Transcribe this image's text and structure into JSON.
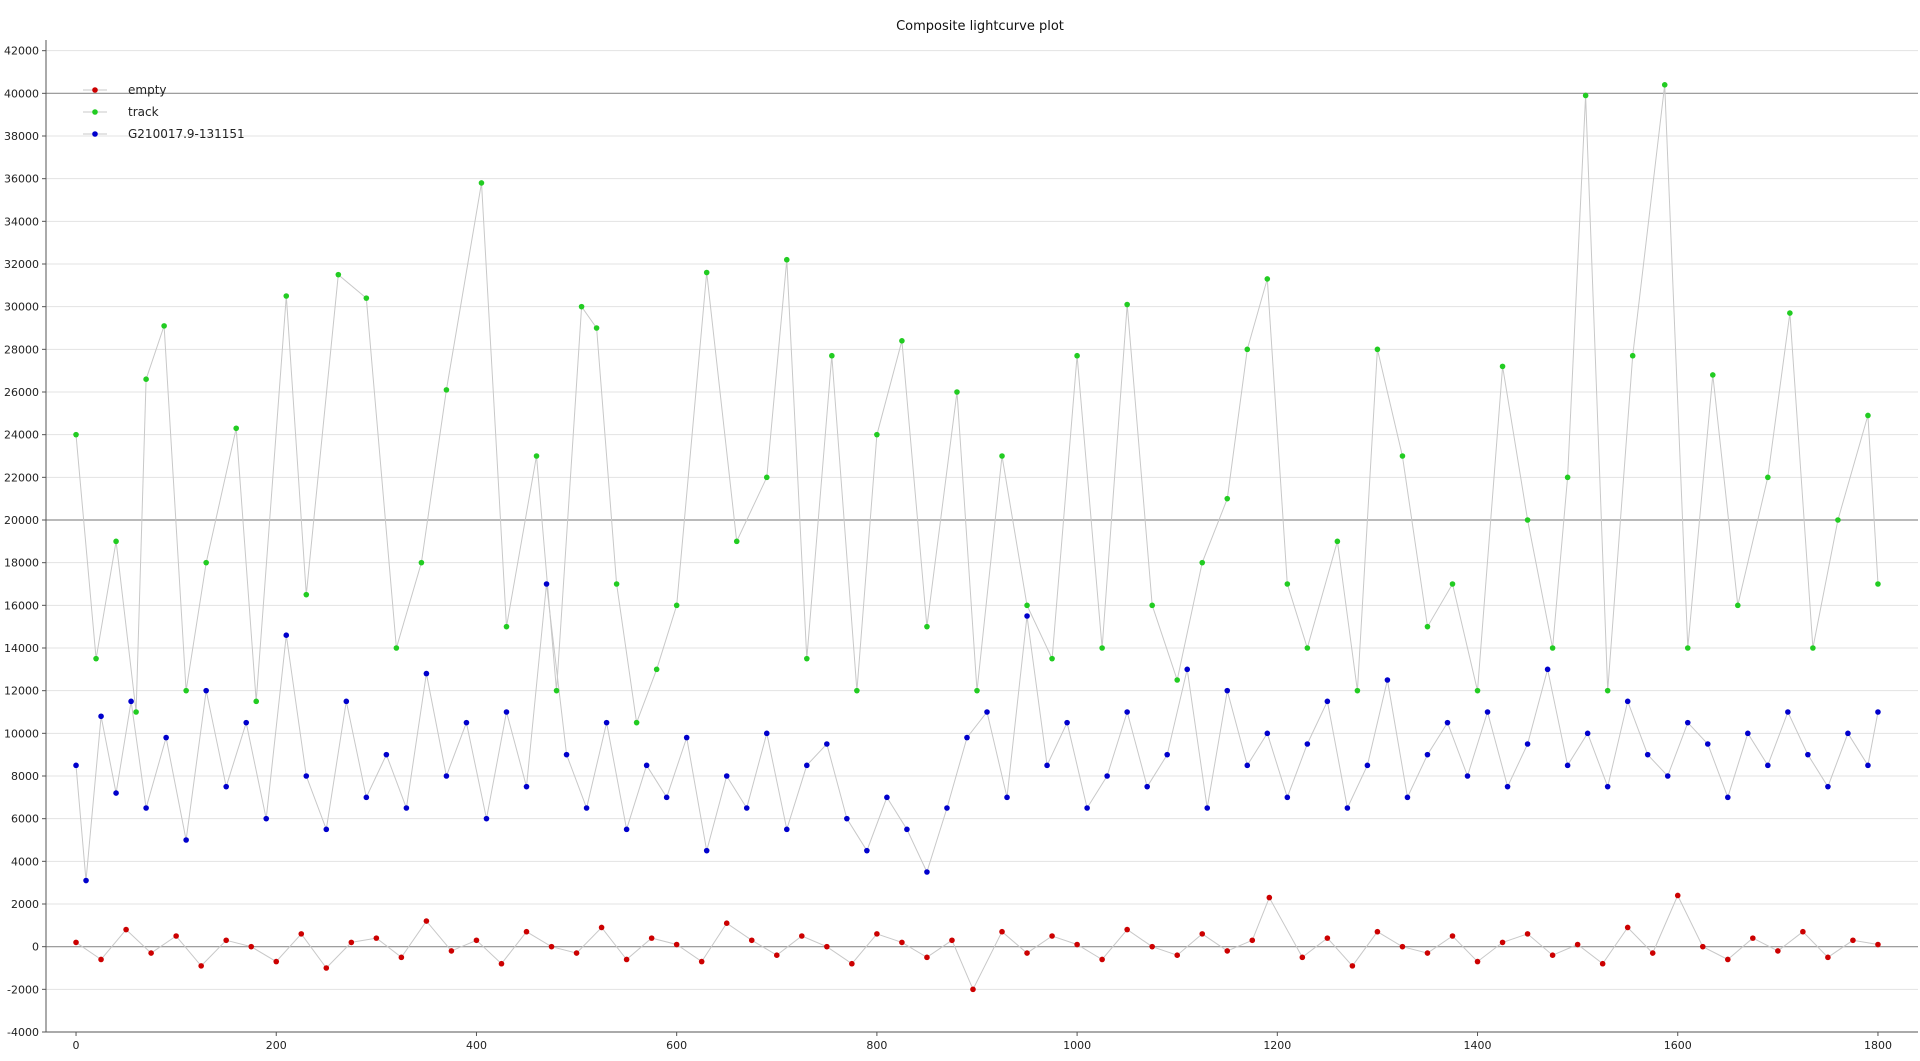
{
  "chart_data": {
    "type": "scatter",
    "title": "Composite lightcurve plot",
    "xlabel": "",
    "ylabel": "",
    "xlim": [
      -30,
      1840
    ],
    "ylim": [
      -4000,
      42500
    ],
    "x_ticks": [
      0,
      200,
      400,
      600,
      800,
      1000,
      1200,
      1400,
      1600,
      1800
    ],
    "y_ticks": [
      -4000,
      -2000,
      0,
      2000,
      4000,
      6000,
      8000,
      10000,
      12000,
      14000,
      16000,
      18000,
      20000,
      22000,
      24000,
      26000,
      28000,
      30000,
      32000,
      34000,
      36000,
      38000,
      40000,
      42000
    ],
    "major_gridlines": [
      0,
      20000,
      40000
    ],
    "grid": true,
    "legend_position": "top-left",
    "connect_lines": true,
    "line_color": "#c8c8c8",
    "series": [
      {
        "name": "empty",
        "color": "#cc0000",
        "x": [
          0,
          25,
          50,
          75,
          100,
          125,
          150,
          175,
          200,
          225,
          250,
          275,
          300,
          325,
          350,
          375,
          400,
          425,
          450,
          475,
          500,
          525,
          550,
          575,
          600,
          625,
          650,
          675,
          700,
          725,
          750,
          775,
          800,
          825,
          850,
          875,
          896,
          925,
          950,
          975,
          1000,
          1025,
          1050,
          1075,
          1100,
          1125,
          1150,
          1175,
          1192,
          1225,
          1250,
          1275,
          1300,
          1325,
          1350,
          1375,
          1400,
          1425,
          1450,
          1475,
          1500,
          1525,
          1550,
          1575,
          1600,
          1625,
          1650,
          1675,
          1700,
          1725,
          1750,
          1775,
          1800
        ],
        "y": [
          200,
          -600,
          800,
          -300,
          500,
          -900,
          300,
          0,
          -700,
          600,
          -1000,
          200,
          400,
          -500,
          1200,
          -200,
          300,
          -800,
          700,
          0,
          -300,
          900,
          -600,
          400,
          100,
          -700,
          1100,
          300,
          -400,
          500,
          0,
          -800,
          600,
          200,
          -500,
          300,
          -2000,
          700,
          -300,
          500,
          100,
          -600,
          800,
          0,
          -400,
          600,
          -200,
          300,
          2300,
          -500,
          400,
          -900,
          700,
          0,
          -300,
          500,
          -700,
          200,
          600,
          -400,
          100,
          -800,
          900,
          -300,
          2400,
          0,
          -600,
          400,
          -200,
          700,
          -500,
          300,
          100
        ]
      },
      {
        "name": "track",
        "color": "#22cc22",
        "x": [
          0,
          20,
          40,
          60,
          70,
          88,
          110,
          130,
          160,
          180,
          210,
          230,
          262,
          290,
          320,
          345,
          370,
          405,
          430,
          460,
          480,
          505,
          520,
          540,
          560,
          580,
          600,
          630,
          660,
          690,
          710,
          730,
          755,
          780,
          800,
          825,
          850,
          880,
          900,
          925,
          950,
          975,
          1000,
          1025,
          1050,
          1075,
          1100,
          1125,
          1150,
          1170,
          1190,
          1210,
          1230,
          1260,
          1280,
          1300,
          1325,
          1350,
          1375,
          1400,
          1425,
          1450,
          1475,
          1490,
          1508,
          1530,
          1555,
          1587,
          1610,
          1635,
          1660,
          1690,
          1712,
          1735,
          1760,
          1790,
          1800
        ],
        "y": [
          24000,
          13500,
          19000,
          11000,
          26600,
          29100,
          12000,
          18000,
          24300,
          11500,
          30500,
          16500,
          31500,
          30400,
          14000,
          18000,
          26100,
          35800,
          15000,
          23000,
          12000,
          30000,
          29000,
          17000,
          10500,
          13000,
          16000,
          31600,
          19000,
          22000,
          32200,
          13500,
          27700,
          12000,
          24000,
          28400,
          15000,
          26000,
          12000,
          23000,
          16000,
          13500,
          27700,
          14000,
          30100,
          16000,
          12500,
          18000,
          21000,
          28000,
          31300,
          17000,
          14000,
          19000,
          12000,
          28000,
          23000,
          15000,
          17000,
          12000,
          27200,
          20000,
          14000,
          22000,
          39900,
          12000,
          27700,
          40400,
          14000,
          26800,
          16000,
          22000,
          29700,
          14000,
          20000,
          24900,
          17000
        ]
      },
      {
        "name": "G210017.9-131151",
        "color": "#0000cc",
        "x": [
          0,
          10,
          25,
          40,
          55,
          70,
          90,
          110,
          130,
          150,
          170,
          190,
          210,
          230,
          250,
          270,
          290,
          310,
          330,
          350,
          370,
          390,
          410,
          430,
          450,
          470,
          490,
          510,
          530,
          550,
          570,
          590,
          610,
          630,
          650,
          670,
          690,
          710,
          730,
          750,
          770,
          790,
          810,
          830,
          850,
          870,
          890,
          910,
          930,
          950,
          970,
          990,
          1010,
          1030,
          1050,
          1070,
          1090,
          1110,
          1130,
          1150,
          1170,
          1190,
          1210,
          1230,
          1250,
          1270,
          1290,
          1310,
          1330,
          1350,
          1370,
          1390,
          1410,
          1430,
          1450,
          1470,
          1490,
          1510,
          1530,
          1550,
          1570,
          1590,
          1610,
          1630,
          1650,
          1670,
          1690,
          1710,
          1730,
          1750,
          1770,
          1790,
          1800
        ],
        "y": [
          8500,
          3100,
          10800,
          7200,
          11500,
          6500,
          9800,
          5000,
          12000,
          7500,
          10500,
          6000,
          14600,
          8000,
          5500,
          11500,
          7000,
          9000,
          6500,
          12800,
          8000,
          10500,
          6000,
          11000,
          7500,
          17000,
          9000,
          6500,
          10500,
          5500,
          8500,
          7000,
          9800,
          4500,
          8000,
          6500,
          10000,
          5500,
          8500,
          9500,
          6000,
          4500,
          7000,
          5500,
          3500,
          6500,
          9800,
          11000,
          7000,
          15500,
          8500,
          10500,
          6500,
          8000,
          11000,
          7500,
          9000,
          13000,
          6500,
          12000,
          8500,
          10000,
          7000,
          9500,
          11500,
          6500,
          8500,
          12500,
          7000,
          9000,
          10500,
          8000,
          11000,
          7500,
          9500,
          13000,
          8500,
          10000,
          7500,
          11500,
          9000,
          8000,
          10500,
          9500,
          7000,
          10000,
          8500,
          11000,
          9000,
          7500,
          10000,
          8500,
          11000
        ]
      }
    ]
  }
}
